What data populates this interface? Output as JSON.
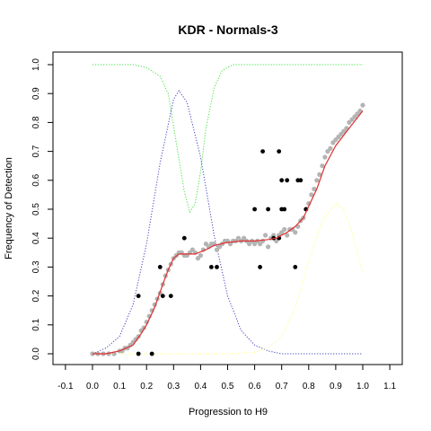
{
  "chart_data": {
    "type": "scatter",
    "title": "KDR - Normals-3",
    "xlabel": "Progression to H9",
    "ylabel": "Frequency of Detection",
    "xlim": [
      -0.1,
      1.1
    ],
    "ylim": [
      0.0,
      1.0
    ],
    "xticks": [
      "-0.1",
      "0.0",
      "0.1",
      "0.2",
      "0.3",
      "0.4",
      "0.5",
      "0.6",
      "0.7",
      "0.8",
      "0.9",
      "1.0",
      "1.1"
    ],
    "yticks": [
      "0.0",
      "0.1",
      "0.2",
      "0.3",
      "0.4",
      "0.5",
      "0.6",
      "0.7",
      "0.8",
      "0.9",
      "1.0"
    ],
    "grid": false,
    "legend": "none",
    "colors": {
      "fit_line": "#e03030",
      "gray_points": "#b4b4b4",
      "black_points": "#000000",
      "blue_curve": "#4040c0",
      "green_curve": "#40e040",
      "yellow_curve": "#ffff80"
    },
    "series": [
      {
        "kind": "points-black",
        "points": [
          [
            0.17,
            0.0
          ],
          [
            0.22,
            0.0
          ],
          [
            0.17,
            0.2
          ],
          [
            0.25,
            0.3
          ],
          [
            0.26,
            0.2
          ],
          [
            0.29,
            0.2
          ],
          [
            0.34,
            0.4
          ],
          [
            0.44,
            0.3
          ],
          [
            0.46,
            0.3
          ],
          [
            0.6,
            0.5
          ],
          [
            0.62,
            0.3
          ],
          [
            0.63,
            0.7
          ],
          [
            0.65,
            0.5
          ],
          [
            0.67,
            0.4
          ],
          [
            0.69,
            0.4
          ],
          [
            0.69,
            0.7
          ],
          [
            0.7,
            0.5
          ],
          [
            0.7,
            0.6
          ],
          [
            0.71,
            0.5
          ],
          [
            0.72,
            0.6
          ],
          [
            0.75,
            0.3
          ],
          [
            0.76,
            0.6
          ],
          [
            0.77,
            0.6
          ],
          [
            0.79,
            0.5
          ]
        ]
      },
      {
        "kind": "points-gray",
        "points": [
          [
            0.0,
            0.0
          ],
          [
            0.02,
            0.0
          ],
          [
            0.04,
            0.0
          ],
          [
            0.06,
            0.0
          ],
          [
            0.08,
            0.0
          ],
          [
            0.1,
            0.01
          ],
          [
            0.11,
            0.01
          ],
          [
            0.12,
            0.02
          ],
          [
            0.13,
            0.02
          ],
          [
            0.14,
            0.03
          ],
          [
            0.15,
            0.04
          ],
          [
            0.16,
            0.05
          ],
          [
            0.17,
            0.06
          ],
          [
            0.18,
            0.08
          ],
          [
            0.19,
            0.09
          ],
          [
            0.2,
            0.11
          ],
          [
            0.21,
            0.13
          ],
          [
            0.22,
            0.15
          ],
          [
            0.23,
            0.17
          ],
          [
            0.24,
            0.19
          ],
          [
            0.25,
            0.21
          ],
          [
            0.26,
            0.24
          ],
          [
            0.27,
            0.27
          ],
          [
            0.28,
            0.29
          ],
          [
            0.29,
            0.31
          ],
          [
            0.3,
            0.33
          ],
          [
            0.31,
            0.34
          ],
          [
            0.32,
            0.35
          ],
          [
            0.33,
            0.35
          ],
          [
            0.34,
            0.34
          ],
          [
            0.35,
            0.34
          ],
          [
            0.36,
            0.35
          ],
          [
            0.37,
            0.36
          ],
          [
            0.38,
            0.35
          ],
          [
            0.39,
            0.33
          ],
          [
            0.4,
            0.34
          ],
          [
            0.41,
            0.36
          ],
          [
            0.42,
            0.38
          ],
          [
            0.43,
            0.37
          ],
          [
            0.44,
            0.38
          ],
          [
            0.45,
            0.38
          ],
          [
            0.46,
            0.36
          ],
          [
            0.47,
            0.37
          ],
          [
            0.48,
            0.38
          ],
          [
            0.49,
            0.39
          ],
          [
            0.5,
            0.39
          ],
          [
            0.51,
            0.38
          ],
          [
            0.52,
            0.39
          ],
          [
            0.53,
            0.39
          ],
          [
            0.54,
            0.4
          ],
          [
            0.55,
            0.39
          ],
          [
            0.56,
            0.4
          ],
          [
            0.57,
            0.39
          ],
          [
            0.58,
            0.38
          ],
          [
            0.59,
            0.39
          ],
          [
            0.6,
            0.38
          ],
          [
            0.61,
            0.39
          ],
          [
            0.62,
            0.38
          ],
          [
            0.63,
            0.39
          ],
          [
            0.64,
            0.41
          ],
          [
            0.65,
            0.37
          ],
          [
            0.66,
            0.4
          ],
          [
            0.67,
            0.41
          ],
          [
            0.68,
            0.39
          ],
          [
            0.69,
            0.41
          ],
          [
            0.7,
            0.42
          ],
          [
            0.71,
            0.43
          ],
          [
            0.72,
            0.41
          ],
          [
            0.73,
            0.43
          ],
          [
            0.74,
            0.43
          ],
          [
            0.75,
            0.42
          ],
          [
            0.76,
            0.44
          ],
          [
            0.77,
            0.46
          ],
          [
            0.78,
            0.47
          ],
          [
            0.79,
            0.5
          ],
          [
            0.8,
            0.52
          ],
          [
            0.81,
            0.55
          ],
          [
            0.82,
            0.57
          ],
          [
            0.83,
            0.6
          ],
          [
            0.84,
            0.62
          ],
          [
            0.85,
            0.65
          ],
          [
            0.86,
            0.68
          ],
          [
            0.87,
            0.7
          ],
          [
            0.88,
            0.71
          ],
          [
            0.89,
            0.73
          ],
          [
            0.9,
            0.74
          ],
          [
            0.91,
            0.75
          ],
          [
            0.92,
            0.76
          ],
          [
            0.93,
            0.77
          ],
          [
            0.94,
            0.78
          ],
          [
            0.95,
            0.8
          ],
          [
            0.96,
            0.81
          ],
          [
            0.97,
            0.82
          ],
          [
            0.98,
            0.83
          ],
          [
            0.99,
            0.84
          ],
          [
            1.0,
            0.86
          ]
        ]
      },
      {
        "kind": "fit-line",
        "points": [
          [
            0.0,
            0.0
          ],
          [
            0.05,
            0.0
          ],
          [
            0.1,
            0.01
          ],
          [
            0.15,
            0.03
          ],
          [
            0.18,
            0.07
          ],
          [
            0.2,
            0.1
          ],
          [
            0.23,
            0.16
          ],
          [
            0.26,
            0.24
          ],
          [
            0.28,
            0.29
          ],
          [
            0.3,
            0.33
          ],
          [
            0.32,
            0.345
          ],
          [
            0.35,
            0.345
          ],
          [
            0.38,
            0.345
          ],
          [
            0.42,
            0.36
          ],
          [
            0.45,
            0.375
          ],
          [
            0.5,
            0.385
          ],
          [
            0.55,
            0.39
          ],
          [
            0.6,
            0.39
          ],
          [
            0.65,
            0.395
          ],
          [
            0.68,
            0.4
          ],
          [
            0.72,
            0.42
          ],
          [
            0.75,
            0.44
          ],
          [
            0.78,
            0.47
          ],
          [
            0.8,
            0.51
          ],
          [
            0.83,
            0.57
          ],
          [
            0.86,
            0.65
          ],
          [
            0.9,
            0.72
          ],
          [
            0.95,
            0.78
          ],
          [
            1.0,
            0.84
          ]
        ]
      },
      {
        "kind": "blue-dotted",
        "points": [
          [
            0.0,
            0.0
          ],
          [
            0.05,
            0.02
          ],
          [
            0.1,
            0.06
          ],
          [
            0.15,
            0.17
          ],
          [
            0.2,
            0.38
          ],
          [
            0.25,
            0.66
          ],
          [
            0.3,
            0.88
          ],
          [
            0.32,
            0.91
          ],
          [
            0.35,
            0.87
          ],
          [
            0.4,
            0.68
          ],
          [
            0.45,
            0.41
          ],
          [
            0.5,
            0.2
          ],
          [
            0.55,
            0.08
          ],
          [
            0.6,
            0.03
          ],
          [
            0.65,
            0.01
          ],
          [
            0.7,
            0.0
          ],
          [
            1.0,
            0.0
          ]
        ]
      },
      {
        "kind": "green-dotted",
        "points": [
          [
            0.0,
            1.0
          ],
          [
            0.15,
            1.0
          ],
          [
            0.2,
            0.99
          ],
          [
            0.25,
            0.96
          ],
          [
            0.28,
            0.9
          ],
          [
            0.31,
            0.73
          ],
          [
            0.34,
            0.56
          ],
          [
            0.36,
            0.49
          ],
          [
            0.38,
            0.52
          ],
          [
            0.4,
            0.63
          ],
          [
            0.42,
            0.78
          ],
          [
            0.45,
            0.92
          ],
          [
            0.48,
            0.98
          ],
          [
            0.52,
            1.0
          ],
          [
            1.0,
            1.0
          ]
        ]
      },
      {
        "kind": "yellow-dotted",
        "points": [
          [
            0.0,
            0.0
          ],
          [
            0.5,
            0.0
          ],
          [
            0.6,
            0.005
          ],
          [
            0.65,
            0.02
          ],
          [
            0.7,
            0.06
          ],
          [
            0.75,
            0.16
          ],
          [
            0.8,
            0.32
          ],
          [
            0.85,
            0.46
          ],
          [
            0.9,
            0.52
          ],
          [
            0.93,
            0.5
          ],
          [
            0.96,
            0.42
          ],
          [
            1.0,
            0.28
          ]
        ]
      }
    ]
  }
}
